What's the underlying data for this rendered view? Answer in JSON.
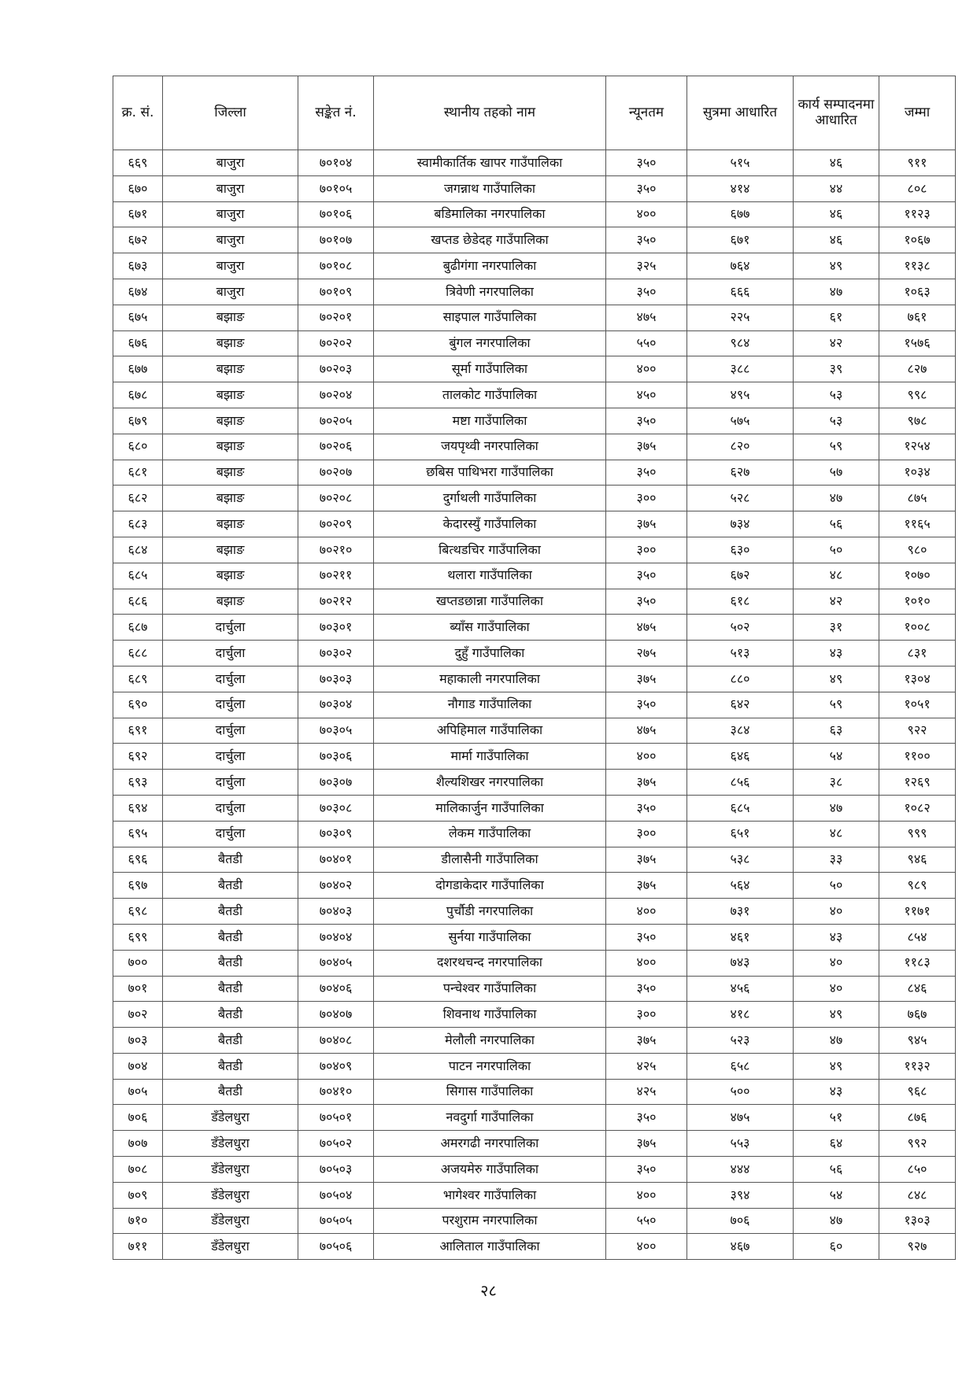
{
  "table": {
    "headers": [
      "क्र. सं.",
      "जिल्ला",
      "सङ्केत नं.",
      "स्थानीय तहको नाम",
      "न्यूनतम",
      "सुत्रमा आधारित",
      "कार्य सम्पादनमा आधारित",
      "जम्मा"
    ],
    "rows": [
      [
        "६६९",
        "बाजुरा",
        "७०१०४",
        "स्वामीकार्तिक खापर  गाउँपालिका",
        "३५०",
        "५१५",
        "४६",
        "९११"
      ],
      [
        "६७०",
        "बाजुरा",
        "७०१०५",
        "जगन्नाथ गाउँपालिका",
        "३५०",
        "४१४",
        "४४",
        "८०८"
      ],
      [
        "६७१",
        "बाजुरा",
        "७०१०६",
        "बडिमालिका नगरपालिका",
        "४००",
        "६७७",
        "४६",
        "११२३"
      ],
      [
        "६७२",
        "बाजुरा",
        "७०१०७",
        "खप्तड छेडेदह  गाउँपालिका",
        "३५०",
        "६७१",
        "४६",
        "१०६७"
      ],
      [
        "६७३",
        "बाजुरा",
        "७०१०८",
        "बुढीगंगा नगरपालिका",
        "३२५",
        "७६४",
        "४९",
        "११३८"
      ],
      [
        "६७४",
        "बाजुरा",
        "७०१०९",
        "त्रिवेणी नगरपालिका",
        "३५०",
        "६६६",
        "४७",
        "१०६३"
      ],
      [
        "६७५",
        "बझाङ",
        "७०२०१",
        "साइपाल गाउँपालिका",
        "४७५",
        "२२५",
        "६१",
        "७६१"
      ],
      [
        "६७६",
        "बझाङ",
        "७०२०२",
        "बुंगल नगरपालिका",
        "५५०",
        "९८४",
        "४२",
        "१५७६"
      ],
      [
        "६७७",
        "बझाङ",
        "७०२०३",
        "सूर्मा गाउँपालिका",
        "४००",
        "३८८",
        "३९",
        "८२७"
      ],
      [
        "६७८",
        "बझाङ",
        "७०२०४",
        "तालकोट गाउँपालिका",
        "४५०",
        "४९५",
        "५३",
        "९९८"
      ],
      [
        "६७९",
        "बझाङ",
        "७०२०५",
        "मष्टा गाउँपालिका",
        "३५०",
        "५७५",
        "५३",
        "९७८"
      ],
      [
        "६८०",
        "बझाङ",
        "७०२०६",
        "जयपृथ्वी नगरपालिका",
        "३७५",
        "८२०",
        "५९",
        "१२५४"
      ],
      [
        "६८१",
        "बझाङ",
        "७०२०७",
        "छबिस पाथिभरा  गाउँपालिका",
        "३५०",
        "६२७",
        "५७",
        "१०३४"
      ],
      [
        "६८२",
        "बझाङ",
        "७०२०८",
        "दुर्गाथली गाउँपालिका",
        "३००",
        "५२८",
        "४७",
        "८७५"
      ],
      [
        "६८३",
        "बझाङ",
        "७०२०९",
        "केदारस्युँ गाउँपालिका",
        "३७५",
        "७३४",
        "५६",
        "११६५"
      ],
      [
        "६८४",
        "बझाङ",
        "७०२१०",
        "बित्थडचिर गाउँपालिका",
        "३००",
        "६३०",
        "५०",
        "९८०"
      ],
      [
        "६८५",
        "बझाङ",
        "७०२११",
        "थलारा गाउँपालिका",
        "३५०",
        "६७२",
        "४८",
        "१०७०"
      ],
      [
        "६८६",
        "बझाङ",
        "७०२१२",
        "खप्तडछान्ना गाउँपालिका",
        "३५०",
        "६१८",
        "४२",
        "१०१०"
      ],
      [
        "६८७",
        "दार्चुला",
        "७०३०१",
        "ब्याँस गाउँपालिका",
        "४७५",
        "५०२",
        "३१",
        "१००८"
      ],
      [
        "६८८",
        "दार्चुला",
        "७०३०२",
        "दुहुँ गाउँपालिका",
        "२७५",
        "५१३",
        "४३",
        "८३१"
      ],
      [
        "६८९",
        "दार्चुला",
        "७०३०३",
        "महाकाली नगरपालिका",
        "३७५",
        "८८०",
        "४९",
        "१३०४"
      ],
      [
        "६९०",
        "दार्चुला",
        "७०३०४",
        "नौगाड गाउँपालिका",
        "३५०",
        "६४२",
        "५९",
        "१०५१"
      ],
      [
        "६९१",
        "दार्चुला",
        "७०३०५",
        "अपिहिमाल गाउँपालिका",
        "४७५",
        "३८४",
        "६३",
        "९२२"
      ],
      [
        "६९२",
        "दार्चुला",
        "७०३०६",
        "मार्मा गाउँपालिका",
        "४००",
        "६४६",
        "५४",
        "११००"
      ],
      [
        "६९३",
        "दार्चुला",
        "७०३०७",
        "शैल्यशिखर नगरपालिका",
        "३७५",
        "८५६",
        "३८",
        "१२६९"
      ],
      [
        "६९४",
        "दार्चुला",
        "७०३०८",
        "मालिकार्जुन गाउँपालिका",
        "३५०",
        "६८५",
        "४७",
        "१०८२"
      ],
      [
        "६९५",
        "दार्चुला",
        "७०३०९",
        "लेकम गाउँपालिका",
        "३००",
        "६५१",
        "४८",
        "९९९"
      ],
      [
        "६९६",
        "बैतडी",
        "७०४०१",
        "डीलासैनी गाउँपालिका",
        "३७५",
        "५३८",
        "३३",
        "९४६"
      ],
      [
        "६९७",
        "बैतडी",
        "७०४०२",
        "दोगडाकेदार गाउँपालिका",
        "३७५",
        "५६४",
        "५०",
        "९८९"
      ],
      [
        "६९८",
        "बैतडी",
        "७०४०३",
        "पुर्चौडी नगरपालिका",
        "४००",
        "७३१",
        "४०",
        "११७१"
      ],
      [
        "६९९",
        "बैतडी",
        "७०४०४",
        "सुर्नया गाउँपालिका",
        "३५०",
        "४६१",
        "४३",
        "८५४"
      ],
      [
        "७००",
        "बैतडी",
        "७०४०५",
        "दशरथचन्द नगरपालिका",
        "४००",
        "७४३",
        "४०",
        "११८३"
      ],
      [
        "७०१",
        "बैतडी",
        "७०४०६",
        "पन्चेश्वर गाउँपालिका",
        "३५०",
        "४५६",
        "४०",
        "८४६"
      ],
      [
        "७०२",
        "बैतडी",
        "७०४०७",
        "शिवनाथ गाउँपालिका",
        "३००",
        "४१८",
        "४९",
        "७६७"
      ],
      [
        "७०३",
        "बैतडी",
        "७०४०८",
        "मेलौली नगरपालिका",
        "३७५",
        "५२३",
        "४७",
        "९४५"
      ],
      [
        "७०४",
        "बैतडी",
        "७०४०९",
        "पाटन नगरपालिका",
        "४२५",
        "६५८",
        "४९",
        "११३२"
      ],
      [
        "७०५",
        "बैतडी",
        "७०४१०",
        "सिगास गाउँपालिका",
        "४२५",
        "५००",
        "४३",
        "९६८"
      ],
      [
        "७०६",
        "डँडेलधुरा",
        "७०५०१",
        "नवदुर्गा गाउँपालिका",
        "३५०",
        "४७५",
        "५१",
        "८७६"
      ],
      [
        "७०७",
        "डँडेलधुरा",
        "७०५०२",
        "अमरगढी नगरपालिका",
        "३७५",
        "५५३",
        "६४",
        "९९२"
      ],
      [
        "७०८",
        "डँडेलधुरा",
        "७०५०३",
        "अजयमेरु गाउँपालिका",
        "३५०",
        "४४४",
        "५६",
        "८५०"
      ],
      [
        "७०९",
        "डँडेलधुरा",
        "७०५०४",
        "भागेश्वर गाउँपालिका",
        "४००",
        "३९४",
        "५४",
        "८४८"
      ],
      [
        "७१०",
        "डँडेलधुरा",
        "७०५०५",
        "परशुराम नगरपालिका",
        "५५०",
        "७०६",
        "४७",
        "१३०३"
      ],
      [
        "७११",
        "डँडेलधुरा",
        "७०५०६",
        "आलिताल गाउँपालिका",
        "४००",
        "४६७",
        "६०",
        "९२७"
      ]
    ]
  },
  "page_number": "२८"
}
